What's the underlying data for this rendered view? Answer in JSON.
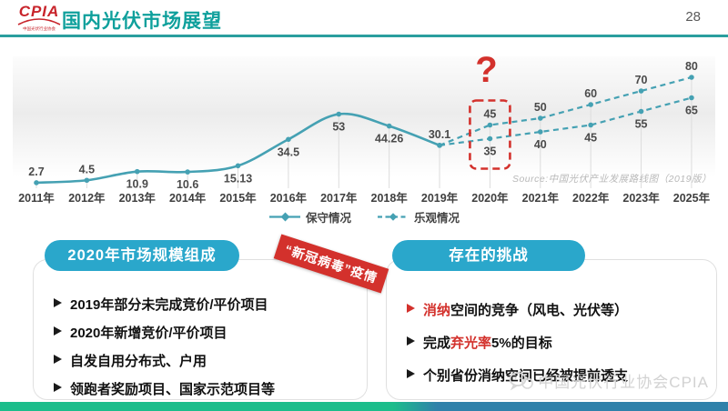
{
  "header": {
    "logo": {
      "text": "CPIA",
      "subtext": "中国光伏行业协会"
    },
    "title": "国内光伏市场展望",
    "page_number": "28"
  },
  "chart_data": {
    "type": "line",
    "title": "",
    "categories": [
      "2011年",
      "2012年",
      "2013年",
      "2014年",
      "2015年",
      "2016年",
      "2017年",
      "2018年",
      "2019年",
      "2020年",
      "2021年",
      "2022年",
      "2023年",
      "2025年"
    ],
    "series": [
      {
        "name": "保守情况",
        "line": "solid",
        "projection_from_index": 8,
        "values": [
          2.7,
          4.5,
          10.9,
          10.6,
          15.13,
          34.5,
          53,
          44.26,
          30.1,
          35,
          40,
          45,
          55,
          65
        ],
        "labels": [
          "2.7",
          "4.5",
          "10.9",
          "10.6",
          "15.13",
          "34.5",
          "53",
          "44.26",
          "30.1",
          "35",
          "40",
          "45",
          "55",
          "65"
        ]
      },
      {
        "name": "乐观情况",
        "line": "dashed",
        "values": [
          null,
          null,
          null,
          null,
          null,
          null,
          null,
          null,
          30.1,
          45,
          50,
          60,
          70,
          80
        ],
        "labels": [
          "",
          "",
          "",
          "",
          "",
          "",
          "",
          "",
          "",
          "45",
          "50",
          "60",
          "70",
          "80"
        ]
      }
    ],
    "ylim": [
      0,
      88
    ],
    "grid": "droplines",
    "legend_position": "bottom",
    "line_color": "#45a1b3",
    "annotation": {
      "question_mark": "?",
      "highlight_category": "2020年",
      "highlight_index": 9,
      "box_top_value": 45,
      "box_bottom_value": 35,
      "color": "#d3312c"
    },
    "source": "Source:中国光伏产业发展路线图（2019版）"
  },
  "left_panel": {
    "title": "2020年市场规模组成",
    "items": [
      {
        "arrow_red": false,
        "segments": [
          {
            "text": "2019年部分未完成竞价/平价项目",
            "red": false
          }
        ]
      },
      {
        "arrow_red": false,
        "segments": [
          {
            "text": "2020年新增竞价/平价项目",
            "red": false
          }
        ]
      },
      {
        "arrow_red": false,
        "segments": [
          {
            "text": "自发自用分布式、户用",
            "red": false
          }
        ]
      },
      {
        "arrow_red": false,
        "segments": [
          {
            "text": "领跑者奖励项目、国家示范项目等",
            "red": false
          }
        ]
      }
    ]
  },
  "badge": {
    "text": "“新冠病毒”疫情"
  },
  "right_panel": {
    "title": "存在的挑战",
    "items": [
      {
        "arrow_red": true,
        "segments": [
          {
            "text": "消纳",
            "red": true
          },
          {
            "text": "空间的竞争（风电、光伏等）",
            "red": false
          }
        ]
      },
      {
        "arrow_red": false,
        "segments": [
          {
            "text": "完成",
            "red": false
          },
          {
            "text": "弃光率",
            "red": true
          },
          {
            "text": "5%的目标",
            "red": false
          }
        ]
      },
      {
        "arrow_red": false,
        "segments": [
          {
            "text": "个别省份消纳空间已经被提前透支",
            "red": false
          }
        ]
      }
    ]
  },
  "watermark": {
    "text": "中国光伏行业协会CPIA"
  },
  "colors": {
    "brand_teal": "#0fa09c",
    "header_rule": "#2a9e9e",
    "pill_cyan": "#2aa7cb",
    "chart_line": "#45a1b3",
    "alert_red": "#d3312c",
    "footer_green": "#1cbd8b",
    "footer_blue": "#2f81aa"
  }
}
